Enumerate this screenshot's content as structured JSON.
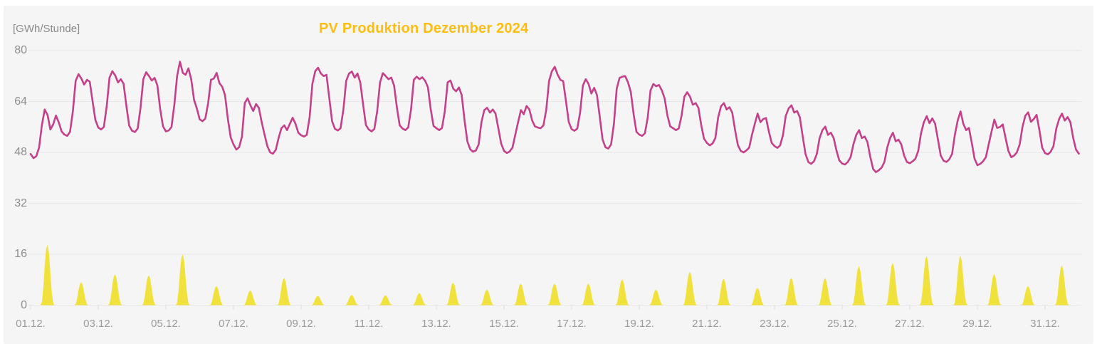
{
  "chart_data": {
    "type": "line",
    "title": "PV Produktion Dezember 2024",
    "title_color": "#fdbe10",
    "background_color": "#f5f5f6",
    "grid_color": "#e8e8e9",
    "tick_mark_color": "#dcdcde",
    "y_axis": {
      "unit_label": "[GWh/Stunde]",
      "ticks": [
        0,
        16,
        32,
        48,
        64,
        80
      ],
      "range": [
        0,
        80
      ],
      "grid": true
    },
    "x_axis": {
      "month": "Dezember 2024",
      "days_in_month": 31,
      "tick_days": [
        1,
        3,
        5,
        7,
        9,
        11,
        13,
        15,
        17,
        19,
        21,
        23,
        25,
        27,
        29,
        31
      ],
      "tick_labels": [
        "01.12.",
        "03.12.",
        "05.12.",
        "07.12.",
        "09.12.",
        "11.12.",
        "13.12.",
        "15.12.",
        "17.12.",
        "19.12.",
        "21.12.",
        "23.12.",
        "25.12.",
        "27.12.",
        "29.12.",
        "31.12."
      ]
    },
    "series": [
      {
        "id": "line-series-main",
        "type": "line",
        "color": "#c4408a",
        "unit": "GWh/Stunde",
        "sample_interval_hours": 2,
        "values_by_day": [
          [
            47.5,
            46.2,
            46.8,
            49.5,
            56.5,
            61.5,
            59.8,
            55.2,
            56.8,
            59.6,
            57.4,
            54.6
          ],
          [
            53.6,
            53.2,
            54.5,
            61.0,
            70.5,
            72.6,
            71.2,
            69.3,
            70.8,
            70.2,
            64.0,
            58.2
          ],
          [
            55.8,
            55.2,
            56.0,
            62.5,
            71.5,
            73.5,
            72.2,
            70.0,
            71.0,
            69.6,
            62.5,
            56.4
          ],
          [
            54.8,
            54.4,
            55.5,
            62.0,
            71.0,
            73.2,
            72.0,
            70.6,
            71.4,
            69.0,
            61.5,
            56.2
          ],
          [
            54.6,
            54.9,
            56.0,
            63.0,
            72.0,
            76.5,
            73.0,
            72.4,
            74.4,
            71.0,
            64.5,
            61.8
          ],
          [
            58.4,
            57.8,
            58.6,
            63.5,
            70.8,
            71.2,
            73.0,
            69.8,
            68.6,
            66.0,
            58.5,
            52.8
          ],
          [
            50.5,
            48.9,
            49.6,
            53.0,
            63.5,
            65.0,
            62.8,
            61.0,
            63.2,
            62.0,
            57.5,
            53.7
          ],
          [
            50.0,
            48.0,
            47.6,
            48.8,
            52.5,
            55.6,
            56.5,
            55.0,
            57.0,
            58.9,
            57.0,
            54.2
          ],
          [
            53.4,
            53.0,
            53.5,
            59.0,
            69.5,
            73.5,
            74.6,
            72.8,
            72.0,
            72.4,
            65.0,
            57.8
          ],
          [
            55.4,
            54.9,
            55.6,
            61.5,
            70.5,
            72.8,
            73.4,
            71.5,
            72.8,
            70.0,
            63.0,
            56.6
          ],
          [
            55.2,
            54.6,
            55.4,
            61.0,
            70.0,
            72.9,
            72.0,
            71.0,
            71.5,
            69.0,
            62.0,
            56.5
          ],
          [
            55.5,
            55.0,
            55.8,
            61.5,
            70.8,
            71.8,
            71.0,
            71.6,
            70.5,
            68.5,
            61.5,
            56.3
          ],
          [
            55.6,
            55.0,
            55.7,
            61.0,
            70.0,
            70.6,
            68.0,
            67.2,
            68.4,
            66.0,
            58.0,
            51.5
          ],
          [
            49.0,
            48.2,
            48.6,
            50.5,
            57.5,
            61.3,
            62.0,
            60.5,
            61.5,
            60.2,
            55.5,
            50.8
          ],
          [
            48.5,
            47.8,
            48.3,
            49.5,
            53.5,
            57.5,
            61.3,
            60.0,
            62.6,
            61.5,
            58.0,
            56.2
          ],
          [
            55.8,
            55.6,
            56.5,
            61.5,
            70.5,
            73.5,
            74.9,
            72.5,
            70.8,
            70.4,
            64.0,
            57.5
          ],
          [
            55.3,
            54.8,
            55.5,
            60.5,
            69.0,
            71.0,
            69.5,
            66.5,
            68.3,
            66.0,
            59.0,
            52.0
          ],
          [
            49.6,
            49.2,
            50.5,
            57.0,
            68.0,
            71.4,
            71.8,
            72.0,
            70.0,
            67.0,
            60.0,
            54.5
          ],
          [
            53.6,
            53.2,
            54.0,
            59.0,
            67.5,
            69.5,
            68.8,
            69.2,
            67.5,
            65.0,
            59.5,
            56.2
          ],
          [
            55.6,
            55.0,
            55.5,
            59.5,
            65.5,
            66.9,
            65.5,
            63.0,
            63.5,
            62.0,
            56.5,
            52.3
          ],
          [
            51.0,
            50.2,
            50.8,
            52.5,
            59.0,
            62.5,
            63.5,
            61.5,
            62.2,
            60.5,
            55.0,
            50.3
          ],
          [
            48.5,
            48.0,
            48.6,
            49.5,
            53.5,
            57.0,
            60.2,
            57.5,
            58.5,
            58.8,
            54.5,
            51.0
          ],
          [
            50.0,
            49.4,
            50.2,
            53.5,
            59.5,
            61.8,
            62.8,
            60.5,
            61.0,
            59.0,
            53.0,
            47.5
          ],
          [
            45.0,
            44.4,
            45.2,
            47.5,
            52.5,
            55.0,
            56.1,
            53.5,
            54.2,
            52.5,
            48.5,
            45.5
          ],
          [
            44.5,
            44.2,
            45.0,
            46.5,
            50.5,
            53.5,
            55.0,
            52.5,
            53.0,
            51.2,
            46.5,
            42.8
          ],
          [
            41.8,
            42.4,
            43.2,
            45.0,
            49.5,
            52.5,
            54.2,
            51.5,
            52.0,
            50.5,
            47.0,
            45.0
          ],
          [
            44.6,
            45.2,
            46.0,
            48.5,
            54.0,
            57.5,
            59.4,
            57.2,
            58.7,
            57.0,
            52.0,
            47.0
          ],
          [
            45.4,
            45.0,
            45.8,
            47.5,
            53.5,
            58.0,
            60.9,
            57.0,
            55.0,
            55.7,
            51.0,
            46.0
          ],
          [
            44.0,
            44.4,
            45.2,
            46.5,
            50.5,
            54.5,
            58.3,
            55.7,
            56.0,
            56.8,
            52.5,
            48.5
          ],
          [
            46.5,
            47.0,
            48.0,
            50.5,
            56.0,
            59.5,
            60.6,
            57.6,
            58.5,
            59.8,
            55.0,
            49.5
          ],
          [
            47.8,
            47.4,
            48.2,
            50.0,
            55.5,
            58.5,
            60.2,
            58.0,
            59.1,
            57.5,
            52.5,
            48.9
          ]
        ],
        "end_value": 47.6
      },
      {
        "id": "pv-production-area",
        "type": "area",
        "color": "#f1e13d",
        "unit": "GWh/Stunde",
        "daily_peak_values": [
          19.0,
          7.2,
          9.7,
          9.4,
          16.0,
          6.0,
          4.6,
          8.6,
          2.9,
          3.2,
          3.1,
          3.8,
          7.1,
          4.9,
          6.8,
          6.8,
          6.8,
          8.1,
          4.9,
          10.5,
          8.3,
          5.4,
          8.6,
          8.5,
          12.3,
          13.3,
          15.5,
          15.6,
          9.8,
          6.0,
          12.5
        ],
        "hourly_profile": [
          0,
          0,
          0,
          0,
          0,
          0,
          0,
          0,
          0.05,
          0.28,
          0.66,
          0.93,
          1.0,
          0.87,
          0.55,
          0.22,
          0.04,
          0,
          0,
          0,
          0,
          0,
          0,
          0
        ]
      }
    ]
  }
}
